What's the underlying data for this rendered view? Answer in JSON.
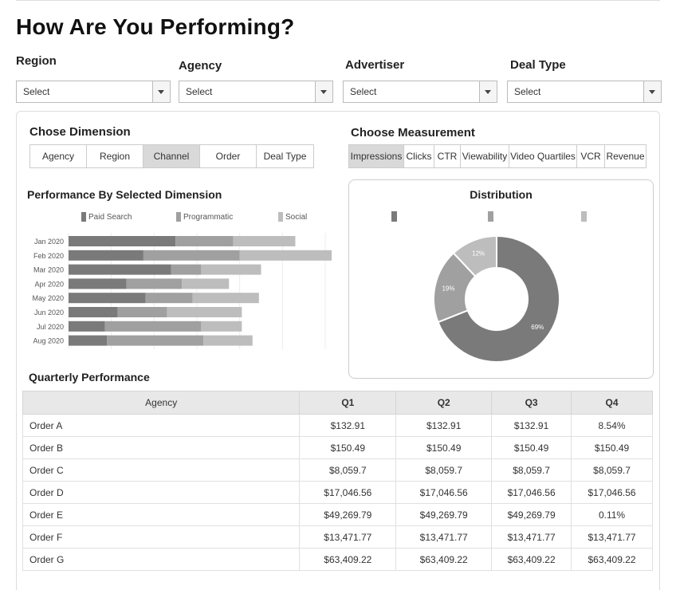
{
  "page": {
    "title": "How Are You Performing?"
  },
  "filters": [
    {
      "label": "Region",
      "value": "Select"
    },
    {
      "label": "Agency",
      "value": "Select"
    },
    {
      "label": "Advertiser",
      "value": "Select"
    },
    {
      "label": "Deal Type",
      "value": "Select"
    }
  ],
  "dimension": {
    "title": "Chose Dimension",
    "tabs": [
      "Agency",
      "Region",
      "Channel",
      "Order",
      "Deal Type"
    ],
    "active": "Channel"
  },
  "measurement": {
    "title": "Choose Measurement",
    "tabs": [
      "Impressions",
      "Clicks",
      "CTR",
      "Viewability",
      "Video Quartiles",
      "VCR",
      "Revenue"
    ],
    "active": "Impressions"
  },
  "colors": {
    "paid_search": "#7a7a7a",
    "programmatic": "#a0a0a0",
    "social": "#bdbdbd",
    "active_tab": "#d9d9d9"
  },
  "bar_chart": {
    "title": "Performance By Selected Dimension",
    "chart_data": {
      "type": "bar",
      "orientation": "horizontal",
      "stacked": true,
      "categories": [
        "Jan 2020",
        "Feb 2020",
        "Mar 2020",
        "Apr 2020",
        "May 2020",
        "Jun 2020",
        "Jul 2020",
        "Aug 2020"
      ],
      "series": [
        {
          "name": "Paid Search",
          "values": [
            50,
            35,
            48,
            27,
            36,
            23,
            17,
            18
          ]
        },
        {
          "name": "Programmatic",
          "values": [
            27,
            45,
            14,
            26,
            22,
            23,
            45,
            45
          ]
        },
        {
          "name": "Social",
          "values": [
            29,
            43,
            28,
            22,
            31,
            35,
            19,
            23
          ]
        }
      ],
      "xlim": [
        0,
        120
      ],
      "grid": true,
      "legend": "top"
    }
  },
  "donut_chart": {
    "title": "Distribution",
    "chart_data": {
      "type": "pie",
      "donut": true,
      "slices": [
        {
          "label": "69%",
          "value": 69
        },
        {
          "label": "19%",
          "value": 19
        },
        {
          "label": "12%",
          "value": 12
        }
      ]
    }
  },
  "quarterly": {
    "title": "Quarterly Performance",
    "headers": [
      "Agency",
      "Q1",
      "Q2",
      "Q3",
      "Q4"
    ],
    "rows": [
      [
        "Order A",
        "$132.91",
        "$132.91",
        "$132.91",
        "8.54%"
      ],
      [
        "Order B",
        "$150.49",
        "$150.49",
        "$150.49",
        "$150.49"
      ],
      [
        "Order C",
        "$8,059.7",
        "$8,059.7",
        "$8,059.7",
        "$8,059.7"
      ],
      [
        "Order D",
        "$17,046.56",
        "$17,046.56",
        "$17,046.56",
        "$17,046.56"
      ],
      [
        "Order E",
        "$49,269.79",
        "$49,269.79",
        "$49,269.79",
        "0.11%"
      ],
      [
        "Order F",
        "$13,471.77",
        "$13,471.77",
        "$13,471.77",
        "$13,471.77"
      ],
      [
        "Order G",
        "$63,409.22",
        "$63,409.22",
        "$63,409.22",
        "$63,409.22"
      ]
    ]
  }
}
